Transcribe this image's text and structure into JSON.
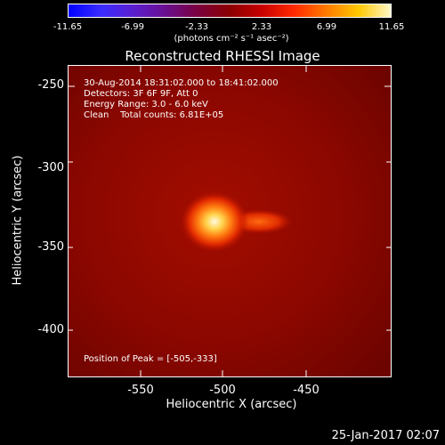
{
  "colorbar": {
    "ticks": [
      "-11.65",
      "-6.99",
      "-2.33",
      "2.33",
      "6.99",
      "11.65"
    ],
    "unit": "(photons cm⁻² s⁻¹ asec⁻²)"
  },
  "title": "Reconstructed RHESSI Image",
  "annotations": {
    "time": "30-Aug-2014 18:31:02.000 to 18:41:02.000",
    "detectors": "Detectors: 3F 6F 9F, Att 0",
    "energy": "Energy Range: 3.0 - 6.0 keV",
    "clean": "Clean    Total counts: 6.81E+05",
    "peak": "Position of Peak = [-505,-333]"
  },
  "axes": {
    "xlabel": "Heliocentric X (arcsec)",
    "ylabel": "Heliocentric Y (arcsec)",
    "xticks": [
      "-550",
      "-500",
      "-450"
    ],
    "yticks": [
      "-250",
      "-300",
      "-350",
      "-400"
    ]
  },
  "footer_date": "25-Jan-2017 02:07"
}
